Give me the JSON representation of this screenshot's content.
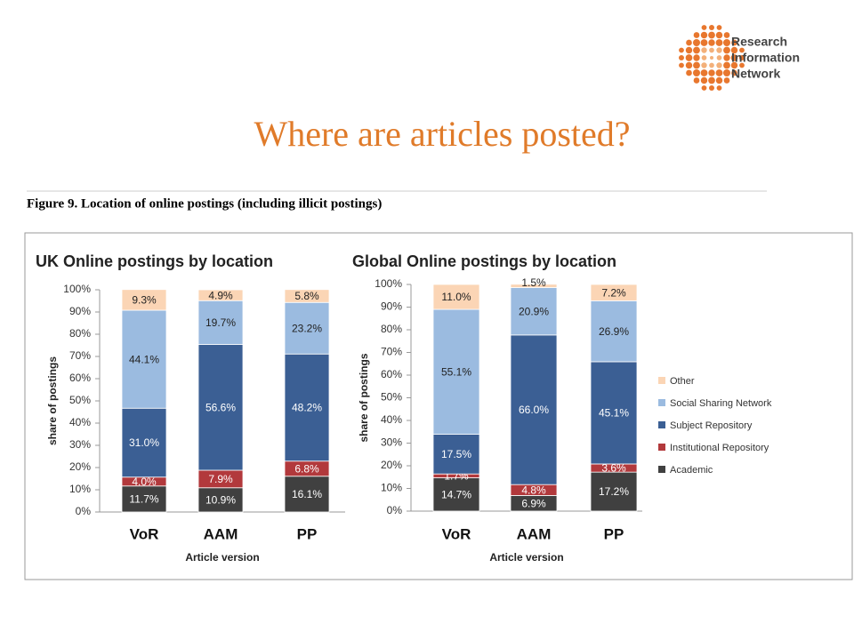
{
  "slide": {
    "title": "Where are articles posted?",
    "logo": [
      "Research",
      "Information",
      "Network"
    ],
    "figure_caption": "Figure 9.  Location of online postings (including illicit postings)"
  },
  "chart_data": [
    {
      "type": "bar",
      "stacked": true,
      "title": "UK Online postings by location",
      "x_label": "Article version",
      "y_label": "share of postings",
      "categories": [
        "VoR",
        "AAM",
        "PP"
      ],
      "series": [
        {
          "color": "#404040",
          "values": [
            11.7,
            10.9,
            16.1
          ],
          "value_labels": [
            "11.7%",
            "10.9%",
            "16.1%"
          ]
        },
        {
          "color": "#b2393c",
          "values": [
            4.0,
            7.9,
            6.8
          ],
          "value_labels": [
            "4.0%",
            "7.9%",
            "6.8%"
          ]
        },
        {
          "color": "#3b5f94",
          "values": [
            31.0,
            56.6,
            48.2
          ],
          "value_labels": [
            "31.0%",
            "56.6%",
            "48.2%"
          ]
        },
        {
          "color": "#9bbbe0",
          "values": [
            44.1,
            19.7,
            23.2
          ],
          "value_labels": [
            "44.1%",
            "19.7%",
            "23.2%"
          ]
        },
        {
          "color": "#fbd5b5",
          "values": [
            9.3,
            4.9,
            5.8
          ],
          "value_labels": [
            "9.3%",
            "4.9%",
            "5.8%"
          ]
        }
      ],
      "ylim": [
        0,
        100
      ],
      "yticks": [
        {
          "value": 0,
          "label": "0%"
        },
        {
          "value": 10,
          "label": "10%"
        },
        {
          "value": 20,
          "label": "20%"
        },
        {
          "value": 30,
          "label": "30%"
        },
        {
          "value": 40,
          "label": "40%"
        },
        {
          "value": 50,
          "label": "50%"
        },
        {
          "value": 60,
          "label": "60%"
        },
        {
          "value": 70,
          "label": "70%"
        },
        {
          "value": 80,
          "label": "80%"
        },
        {
          "value": 90,
          "label": "90%"
        },
        {
          "value": 100,
          "label": "100%"
        }
      ]
    },
    {
      "type": "bar",
      "stacked": true,
      "title": "Global Online postings by location",
      "x_label": "Article version",
      "y_label": "share of postings",
      "legend": "right",
      "categories": [
        "VoR",
        "AAM",
        "PP"
      ],
      "series": [
        {
          "name": "Academic",
          "color": "#404040",
          "values": [
            14.7,
            6.9,
            17.2
          ],
          "value_labels": [
            "14.7%",
            "6.9%",
            "17.2%"
          ]
        },
        {
          "name": "Institutional Repository",
          "color": "#b2393c",
          "values": [
            1.7,
            4.8,
            3.6
          ],
          "value_labels": [
            "1.7%",
            "4.8%",
            "3.6%"
          ]
        },
        {
          "name": "Subject Repository",
          "color": "#3b5f94",
          "values": [
            17.5,
            66.0,
            45.1
          ],
          "value_labels": [
            "17.5%",
            "66.0%",
            "45.1%"
          ]
        },
        {
          "name": "Social Sharing Network",
          "color": "#9bbbe0",
          "values": [
            55.1,
            20.9,
            26.9
          ],
          "value_labels": [
            "55.1%",
            "20.9%",
            "26.9%"
          ]
        },
        {
          "name": "Other",
          "color": "#fbd5b5",
          "values": [
            11.0,
            1.5,
            7.2
          ],
          "value_labels": [
            "11.0%",
            "1.5%",
            "7.2%"
          ]
        }
      ],
      "ylim": [
        0,
        100
      ],
      "yticks": [
        {
          "value": 0,
          "label": "0%"
        },
        {
          "value": 10,
          "label": "10%"
        },
        {
          "value": 20,
          "label": "20%"
        },
        {
          "value": 30,
          "label": "30%"
        },
        {
          "value": 40,
          "label": "40%"
        },
        {
          "value": 50,
          "label": "50%"
        },
        {
          "value": 60,
          "label": "60%"
        },
        {
          "value": 70,
          "label": "70%"
        },
        {
          "value": 80,
          "label": "80%"
        },
        {
          "value": 90,
          "label": "90%"
        },
        {
          "value": 100,
          "label": "100%"
        }
      ]
    }
  ]
}
